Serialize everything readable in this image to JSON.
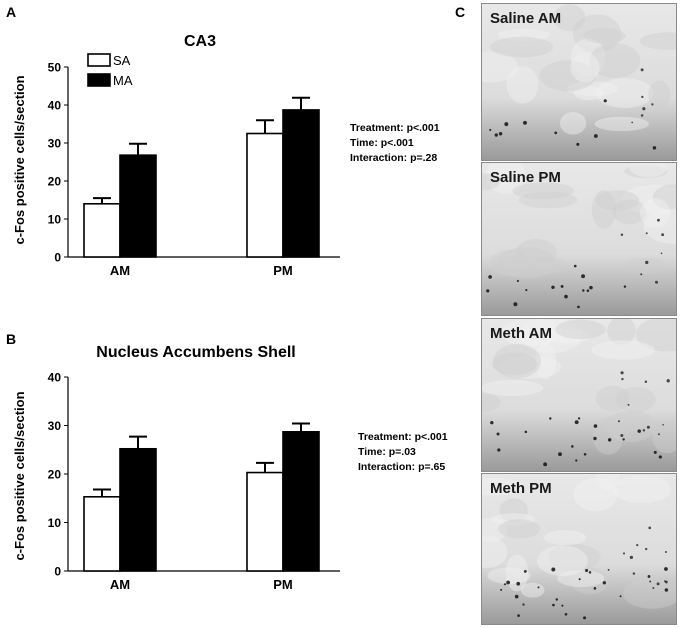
{
  "panels": {
    "a_letter": "A",
    "b_letter": "B",
    "c_letter": "C"
  },
  "colors": {
    "sa_fill": "#ffffff",
    "ma_fill": "#000000"
  },
  "chart_data": [
    {
      "type": "bar",
      "title": "CA3",
      "ylabel": "c-Fos positive cells/section",
      "xlabel": "",
      "categories": [
        "AM",
        "PM"
      ],
      "ylim": [
        0,
        50
      ],
      "yticks": [
        "0",
        "10",
        "20",
        "30",
        "40",
        "50"
      ],
      "legend_placement": "top-left",
      "series": [
        {
          "name": "SA",
          "values": [
            14,
            32.5
          ],
          "errors": [
            1.5,
            3.5
          ]
        },
        {
          "name": "MA",
          "values": [
            26.8,
            38.7
          ],
          "errors": [
            3,
            3.2
          ]
        }
      ],
      "stats": [
        "Treatment: p<.001",
        "Time: p<.001",
        "Interaction: p=.28"
      ]
    },
    {
      "type": "bar",
      "title": "Nucleus Accumbens Shell",
      "ylabel": "c-Fos positive cells/section",
      "xlabel": "",
      "categories": [
        "AM",
        "PM"
      ],
      "ylim": [
        0,
        40
      ],
      "yticks": [
        "0",
        "10",
        "20",
        "30",
        "40"
      ],
      "series": [
        {
          "name": "",
          "values": [
            15.3,
            20.3
          ],
          "errors": [
            1.5,
            2
          ]
        },
        {
          "name": "",
          "values": [
            25.2,
            28.7
          ],
          "errors": [
            2.5,
            1.7
          ]
        }
      ],
      "stats": [
        "Treatment: p<.001",
        "Time: p=.03",
        "Interaction: p=.65"
      ]
    }
  ],
  "micrographs": [
    {
      "label": "Saline AM"
    },
    {
      "label": "Saline PM"
    },
    {
      "label": "Meth AM"
    },
    {
      "label": "Meth PM"
    }
  ]
}
